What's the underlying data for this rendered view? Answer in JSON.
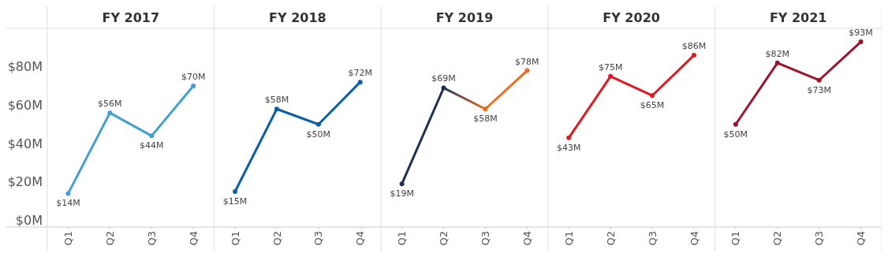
{
  "chart_data": [
    {
      "type": "line",
      "title": "FY 2017",
      "categories": [
        "Q1",
        "Q2",
        "Q3",
        "Q4"
      ],
      "values": [
        14,
        56,
        44,
        70
      ],
      "value_labels": [
        "$14M",
        "$56M",
        "$44M",
        "$70M"
      ],
      "color": "#3fa0d6",
      "marker": "circle",
      "ylim": [
        -3.5,
        100
      ],
      "yticks": [
        {
          "value": 0,
          "label": "$0M"
        },
        {
          "value": 20,
          "label": "$20M"
        },
        {
          "value": 40,
          "label": "$40M"
        },
        {
          "value": 60,
          "label": "$60M"
        },
        {
          "value": 80,
          "label": "$80M"
        }
      ]
    },
    {
      "type": "line",
      "title": "FY 2018",
      "categories": [
        "Q1",
        "Q2",
        "Q3",
        "Q4"
      ],
      "values": [
        15,
        58,
        50,
        72
      ],
      "value_labels": [
        "$15M",
        "$58M",
        "$50M",
        "$72M"
      ],
      "color": "#0b5fa8",
      "marker": "circle",
      "ylim": [
        -3.5,
        100
      ],
      "tick_labels": "x"
    },
    {
      "type": "line",
      "title": "FY 2019",
      "categories": [
        "Q1",
        "Q2",
        "Q3",
        "Q4"
      ],
      "values": [
        19,
        69,
        58,
        78
      ],
      "value_labels": [
        "$19M",
        "$69M",
        "$58M",
        "$78M"
      ],
      "colors": [
        "#1c2f55",
        "#1c2f55",
        "#f26a1b",
        "#f26a1b"
      ],
      "marker": "circle",
      "ylim": [
        -3.5,
        100
      ],
      "tick_labels": "x"
    },
    {
      "type": "line",
      "title": "FY 2020",
      "categories": [
        "Q1",
        "Q2",
        "Q3",
        "Q4"
      ],
      "values": [
        43,
        75,
        65,
        86
      ],
      "value_labels": [
        "$43M",
        "$75M",
        "$65M",
        "$86M"
      ],
      "color": "#e3171f",
      "marker": "circle",
      "ylim": [
        -3.5,
        100
      ],
      "tick_labels": "x"
    },
    {
      "type": "line",
      "title": "FY 2021",
      "categories": [
        "Q1",
        "Q2",
        "Q3",
        "Q4"
      ],
      "values": [
        50,
        82,
        73,
        93
      ],
      "value_labels": [
        "$50M",
        "$82M",
        "$73M",
        "$93M"
      ],
      "color": "#a0122a",
      "marker": "circle",
      "ylim": [
        -3.5,
        100
      ],
      "tick_labels": "x"
    }
  ]
}
